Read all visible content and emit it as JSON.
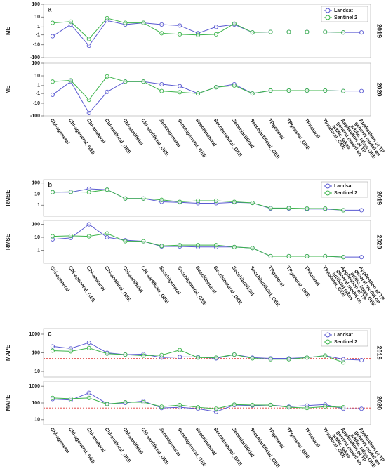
{
  "chart_data": [
    {
      "type": "line",
      "label": "a",
      "ylabel": "ME",
      "scale": "symlog",
      "ylim": [
        -100,
        100
      ],
      "yticks": [
        100,
        10,
        1,
        -1,
        -10,
        -100
      ],
      "legend": "upper right",
      "grid": false,
      "series": [
        {
          "name": "Landsat",
          "color": "#5a5ad2"
        },
        {
          "name": "Sentinel 2",
          "color": "#3cb44b"
        }
      ],
      "categories": [
        "Chl-ageneral",
        "Chl-ageneral_GEE",
        "Chl-anatural",
        "Chl-anatural_GEE",
        "Chl-aartificial",
        "Chl-aartificial_GEE",
        "Secchigeneral",
        "Secchigeneral_GEE",
        "Secchinatural",
        "Secchinatural_GEE",
        "Secchiartificial",
        "Secchiartificial_GEE",
        "TPgeneral",
        "TPgeneral_GEE",
        "TPnatural",
        "TPnatural_GEE",
        "Application of TP general model on artific. lakes",
        "Application of TP general model on artific. lakes GEE"
      ],
      "panels": [
        {
          "year": "2019",
          "values": [
            [
              -1.5,
              2,
              -12,
              5,
              2,
              3,
              2,
              1.5,
              -0.5,
              1,
              2,
              -0.3,
              -0.2,
              -0.2,
              -0.2,
              -0.2,
              -0.3,
              -0.3
            ],
            [
              3,
              4,
              -3,
              8,
              3,
              3,
              -0.5,
              -0.8,
              -1,
              -0.8,
              2.5,
              -0.3,
              -0.2,
              -0.2,
              -0.2,
              -0.2,
              -0.3,
              null
            ]
          ]
        },
        {
          "year": "2020",
          "values": [
            [
              -1.5,
              3,
              -60,
              -0.5,
              3,
              3,
              1.5,
              0.8,
              -1,
              0.5,
              1.5,
              -1,
              -0.2,
              -0.2,
              -0.2,
              -0.2,
              -0.3,
              -0.3
            ],
            [
              3,
              4,
              -5,
              9,
              3,
              3,
              -0.3,
              -0.6,
              -1,
              0.5,
              1,
              -1,
              -0.2,
              -0.2,
              -0.2,
              -0.2,
              -0.3,
              null
            ]
          ]
        }
      ]
    },
    {
      "type": "line",
      "label": "b",
      "ylabel": "RMSE",
      "scale": "log",
      "ylim": [
        0.1,
        200
      ],
      "yticks": [
        100,
        10,
        1
      ],
      "legend": "upper right",
      "grid": false,
      "series": [
        {
          "name": "Landsat",
          "color": "#5a5ad2"
        },
        {
          "name": "Sentinel 2",
          "color": "#3cb44b"
        }
      ],
      "categories": [
        "Chl-ageneral",
        "Chl-ageneral_GEE",
        "Chl-anatural",
        "Chl-anatural_GEE",
        "Chl-aartificial",
        "Chl-aartificial_GEE",
        "Secchigeneral",
        "Secchigeneral_GEE",
        "Secchinatural",
        "Secchinatural_GEE",
        "Secchiartificial",
        "Secchiartificial_GEE",
        "TPgeneral",
        "TPgeneral_GEE",
        "TPnatural",
        "TPnatural_GEE",
        "Application of TP general model on artificial lakes",
        "Application of TP general model on artific. lakes GEE"
      ],
      "panels": [
        {
          "year": "2019",
          "values": [
            [
              15,
              15,
              30,
              25,
              4,
              4,
              2,
              1.8,
              1.5,
              1.5,
              1.8,
              1.6,
              0.5,
              0.5,
              0.45,
              0.45,
              0.35,
              0.35
            ],
            [
              15,
              16,
              15,
              25,
              4,
              4,
              3,
              2,
              2.5,
              2.5,
              2,
              1.6,
              0.55,
              0.55,
              0.5,
              0.5,
              0.35,
              null
            ]
          ]
        },
        {
          "year": "2020",
          "values": [
            [
              7,
              9,
              100,
              10,
              6,
              5,
              2,
              2,
              1.8,
              1.8,
              1.8,
              1.5,
              0.35,
              0.35,
              0.35,
              0.35,
              0.3,
              0.3
            ],
            [
              12,
              13,
              12,
              20,
              5,
              5,
              2.2,
              2.5,
              2.5,
              2.5,
              1.8,
              1.5,
              0.35,
              0.35,
              0.35,
              0.35,
              0.3,
              null
            ]
          ]
        }
      ]
    },
    {
      "type": "line",
      "label": "c",
      "ylabel": "MAPE",
      "scale": "log",
      "ylim": [
        5,
        2000
      ],
      "yticks": [
        1000,
        100,
        10
      ],
      "legend": "upper right",
      "grid": false,
      "hline": {
        "value": 50,
        "color": "#e03030"
      },
      "series": [
        {
          "name": "Landsat",
          "color": "#5a5ad2"
        },
        {
          "name": "Sentinel 2",
          "color": "#3cb44b"
        }
      ],
      "categories": [
        "Chl-ageneral",
        "Chl-ageneral_GEE",
        "Chl-anatural",
        "Chl-anatural_GEE",
        "Chl-aartificial",
        "Chl-aartificial_GEE",
        "Secchigeneral",
        "Secchigeneral_GEE",
        "Secchinatural",
        "Secchinatural_GEE",
        "Secchiartificial",
        "Secchiartificial_GEE",
        "TPgeneral",
        "TPgeneral_GEE",
        "TPnatural",
        "TPnatural_GEE",
        "Application of TP general model on artific. lakes",
        "Application of TP general model on artific. lakes GEE"
      ],
      "panels": [
        {
          "year": "2019",
          "values": [
            [
              220,
              170,
              350,
              100,
              80,
              85,
              55,
              60,
              60,
              50,
              80,
              55,
              50,
              50,
              55,
              70,
              45,
              40
            ],
            [
              130,
              120,
              180,
              90,
              80,
              70,
              75,
              140,
              55,
              55,
              80,
              50,
              45,
              45,
              55,
              70,
              30,
              null
            ]
          ]
        },
        {
          "year": "2020",
          "values": [
            [
              170,
              150,
              400,
              90,
              100,
              130,
              50,
              55,
              45,
              30,
              75,
              70,
              75,
              60,
              70,
              80,
              45,
              45
            ],
            [
              200,
              180,
              200,
              85,
              110,
              110,
              60,
              75,
              55,
              45,
              80,
              75,
              75,
              55,
              50,
              60,
              55,
              null
            ]
          ]
        }
      ]
    }
  ]
}
